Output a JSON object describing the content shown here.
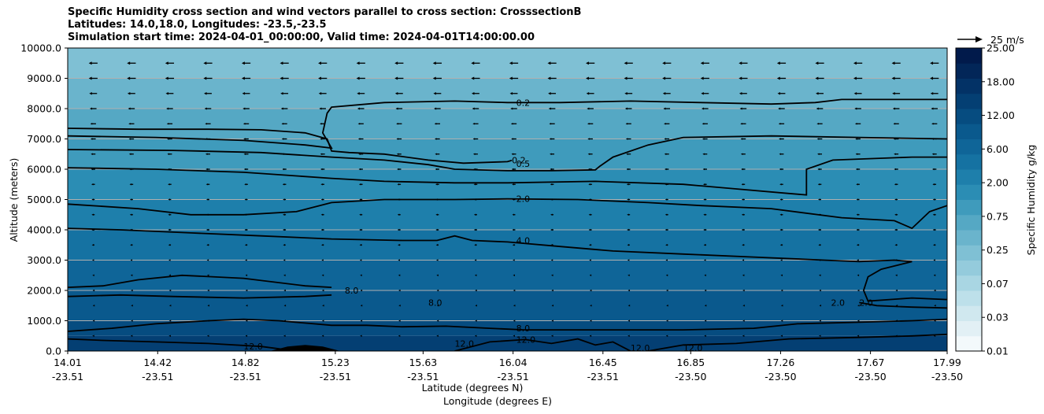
{
  "title_lines": [
    "Specific Humidity cross section and wind vectors parallel to cross section: CrosssectionB",
    "Latitudes: 14.0,18.0, Longitudes: -23.5,-23.5",
    "Simulation start time: 2024-04-01_00:00:00, Valid time: 2024-04-01T14:00:00.00"
  ],
  "quiver_key_label": "25 m/s",
  "colors": {
    "levels": [
      "#f3f9fb",
      "#e2f0f5",
      "#d0e8ef",
      "#bde0ea",
      "#a9d6e3",
      "#94cbdc",
      "#7fc0d4",
      "#6ab4cc",
      "#55a8c4",
      "#3f9bbc",
      "#2b8db4",
      "#1e7fab",
      "#1572a2",
      "#0f6598",
      "#0a598d",
      "#064c80",
      "#043f73",
      "#033266",
      "#022658",
      "#011a4b"
    ],
    "contour": "#000000",
    "terrain": "#000000",
    "grid": "#b0b0b0"
  },
  "chart_data": {
    "type": "heatmap",
    "title": "Specific Humidity cross section and wind vectors parallel to cross section: CrosssectionB",
    "xlabel_lat": "Latitude (degrees N)",
    "xlabel_lon": "Longitude (degrees E)",
    "ylabel": "Altitude (meters)",
    "ylim": [
      0,
      10000
    ],
    "xlim": [
      0,
      1
    ],
    "yticks": [
      "0.0",
      "1000.0",
      "2000.0",
      "3000.0",
      "4000.0",
      "5000.0",
      "6000.0",
      "7000.0",
      "8000.0",
      "9000.0",
      "10000.0"
    ],
    "xticks": [
      {
        "lat": "14.01",
        "lon": "-23.51",
        "f": 0.0
      },
      {
        "lat": "14.42",
        "lon": "-23.51",
        "f": 0.1023
      },
      {
        "lat": "14.82",
        "lon": "-23.51",
        "f": 0.2021
      },
      {
        "lat": "15.23",
        "lon": "-23.51",
        "f": 0.3043
      },
      {
        "lat": "15.63",
        "lon": "-23.51",
        "f": 0.4041
      },
      {
        "lat": "16.04",
        "lon": "-23.51",
        "f": 0.5064
      },
      {
        "lat": "16.45",
        "lon": "-23.51",
        "f": 0.6086
      },
      {
        "lat": "16.85",
        "lon": "-23.50",
        "f": 0.7084
      },
      {
        "lat": "17.26",
        "lon": "-23.50",
        "f": 0.8106
      },
      {
        "lat": "17.67",
        "lon": "-23.50",
        "f": 0.9128
      },
      {
        "lat": "17.99",
        "lon": "-23.50",
        "f": 1.0
      }
    ],
    "colorbar": {
      "label": "Specific Humidity g/kg",
      "ticks": [
        "0.01",
        "0.03",
        "0.07",
        "0.25",
        "0.75",
        "2.00",
        "6.00",
        "12.00",
        "18.00",
        "25.00"
      ]
    },
    "grid": "horizontal",
    "contours": [
      {
        "label": "0.2",
        "label_pos": [
          0.51,
          8200
        ],
        "points": [
          [
            0.0,
            7350
          ],
          [
            0.08,
            7320
          ],
          [
            0.16,
            7320
          ],
          [
            0.22,
            7300
          ],
          [
            0.27,
            7200
          ],
          [
            0.295,
            7000
          ],
          [
            0.3,
            6600
          ],
          [
            0.32,
            6550
          ],
          [
            0.36,
            6500
          ],
          [
            0.41,
            6300
          ],
          [
            0.45,
            6200
          ],
          [
            0.5,
            6250
          ],
          [
            0.505,
            6290
          ]
        ]
      },
      {
        "label": "0.2",
        "label_pos": [
          0.51,
          8200
        ],
        "points": [
          [
            0.0,
            7100
          ],
          [
            0.1,
            7050
          ],
          [
            0.2,
            6950
          ],
          [
            0.27,
            6800
          ],
          [
            0.3,
            6700
          ],
          [
            0.29,
            7200
          ],
          [
            0.295,
            7850
          ],
          [
            0.3,
            8050
          ],
          [
            0.36,
            8200
          ],
          [
            0.44,
            8250
          ],
          [
            0.5,
            8200
          ],
          [
            0.56,
            8200
          ],
          [
            0.64,
            8250
          ],
          [
            0.72,
            8200
          ],
          [
            0.8,
            8150
          ],
          [
            0.85,
            8200
          ],
          [
            0.88,
            8300
          ],
          [
            0.96,
            8300
          ],
          [
            1.0,
            8300
          ]
        ]
      },
      {
        "label": "0.5",
        "label_pos": [
          0.51,
          6200
        ],
        "points": [
          [
            0.0,
            6650
          ],
          [
            0.12,
            6620
          ],
          [
            0.22,
            6550
          ],
          [
            0.3,
            6400
          ],
          [
            0.36,
            6300
          ],
          [
            0.41,
            6150
          ],
          [
            0.44,
            6000
          ],
          [
            0.5,
            5950
          ],
          [
            0.55,
            5950
          ],
          [
            0.6,
            5980
          ],
          [
            0.605,
            6100
          ],
          [
            0.62,
            6400
          ],
          [
            0.66,
            6800
          ],
          [
            0.7,
            7050
          ],
          [
            0.8,
            7100
          ],
          [
            0.9,
            7050
          ],
          [
            1.0,
            7000
          ]
        ]
      },
      {
        "label": "2.0",
        "label_pos": [
          0.51,
          5030
        ],
        "points": [
          [
            0.0,
            6050
          ],
          [
            0.1,
            6000
          ],
          [
            0.2,
            5900
          ],
          [
            0.3,
            5700
          ],
          [
            0.36,
            5600
          ],
          [
            0.44,
            5550
          ],
          [
            0.5,
            5550
          ],
          [
            0.6,
            5600
          ],
          [
            0.7,
            5500
          ],
          [
            0.76,
            5350
          ],
          [
            0.82,
            5200
          ],
          [
            0.84,
            5150
          ],
          [
            0.84,
            5400
          ],
          [
            0.84,
            6000
          ],
          [
            0.87,
            6300
          ],
          [
            0.96,
            6400
          ],
          [
            1.0,
            6400
          ]
        ]
      },
      {
        "label": "2.0",
        "label_pos": [
          0.51,
          5030
        ],
        "points": [
          [
            0.0,
            4850
          ],
          [
            0.08,
            4700
          ],
          [
            0.14,
            4500
          ],
          [
            0.2,
            4500
          ],
          [
            0.26,
            4600
          ],
          [
            0.3,
            4900
          ],
          [
            0.36,
            5000
          ],
          [
            0.44,
            5000
          ],
          [
            0.5,
            5020
          ],
          [
            0.58,
            5000
          ],
          [
            0.66,
            4900
          ],
          [
            0.72,
            4800
          ],
          [
            0.8,
            4700
          ],
          [
            0.88,
            4400
          ],
          [
            0.94,
            4300
          ],
          [
            0.96,
            4050
          ],
          [
            0.98,
            4600
          ],
          [
            1.0,
            4800
          ]
        ]
      },
      {
        "label": "4.0",
        "label_pos": [
          0.51,
          3700
        ],
        "points": [
          [
            0.0,
            4050
          ],
          [
            0.06,
            4000
          ],
          [
            0.14,
            3900
          ],
          [
            0.22,
            3800
          ],
          [
            0.3,
            3700
          ],
          [
            0.38,
            3650
          ],
          [
            0.42,
            3650
          ],
          [
            0.44,
            3800
          ],
          [
            0.46,
            3650
          ],
          [
            0.5,
            3600
          ],
          [
            0.56,
            3450
          ],
          [
            0.62,
            3300
          ],
          [
            0.7,
            3200
          ],
          [
            0.78,
            3100
          ],
          [
            0.86,
            3000
          ],
          [
            0.9,
            2950
          ],
          [
            0.94,
            3000
          ],
          [
            0.96,
            2950
          ],
          [
            0.925,
            2700
          ],
          [
            0.91,
            2450
          ],
          [
            0.905,
            2000
          ],
          [
            0.91,
            1650
          ],
          [
            0.96,
            1750
          ],
          [
            1.0,
            1700
          ]
        ]
      },
      {
        "label": "8.0",
        "label_pos": [
          0.31,
          1950
        ],
        "points": [
          [
            0.0,
            2100
          ],
          [
            0.04,
            2150
          ],
          [
            0.08,
            2350
          ],
          [
            0.13,
            2500
          ],
          [
            0.2,
            2400
          ],
          [
            0.27,
            2150
          ],
          [
            0.3,
            2100
          ]
        ]
      },
      {
        "label": "8.0",
        "label_pos": [
          0.41,
          1600
        ],
        "points": [
          [
            0.0,
            1800
          ],
          [
            0.06,
            1850
          ],
          [
            0.12,
            1800
          ],
          [
            0.2,
            1750
          ],
          [
            0.27,
            1800
          ],
          [
            0.3,
            1850
          ]
        ]
      },
      {
        "label": "2.0",
        "label_pos": [
          0.88,
          1600
        ],
        "points": [
          [
            0.9,
            1600
          ],
          [
            0.92,
            1500
          ],
          [
            0.96,
            1450
          ],
          [
            1.0,
            1420
          ]
        ]
      },
      {
        "label": "8.0",
        "label_pos": [
          0.51,
          750
        ],
        "points": [
          [
            0.0,
            650
          ],
          [
            0.05,
            750
          ],
          [
            0.1,
            900
          ],
          [
            0.16,
            1000
          ],
          [
            0.2,
            1050
          ],
          [
            0.24,
            1000
          ],
          [
            0.28,
            900
          ],
          [
            0.3,
            850
          ],
          [
            0.34,
            850
          ],
          [
            0.38,
            800
          ],
          [
            0.43,
            820
          ],
          [
            0.48,
            750
          ],
          [
            0.52,
            700
          ],
          [
            0.6,
            700
          ],
          [
            0.7,
            700
          ],
          [
            0.78,
            750
          ],
          [
            0.83,
            900
          ],
          [
            0.9,
            950
          ],
          [
            0.96,
            1000
          ],
          [
            1.0,
            1050
          ]
        ]
      },
      {
        "label": "12.0",
        "label_pos": [
          0.51,
          400
        ],
        "points": [
          [
            0.0,
            400
          ],
          [
            0.04,
            350
          ],
          [
            0.1,
            300
          ],
          [
            0.16,
            250
          ],
          [
            0.22,
            150
          ],
          [
            0.26,
            0
          ]
        ]
      },
      {
        "label": "12.0",
        "label_pos": [
          0.51,
          400
        ],
        "points": [
          [
            0.44,
            0
          ],
          [
            0.48,
            300
          ],
          [
            0.52,
            380
          ],
          [
            0.55,
            250
          ],
          [
            0.58,
            400
          ],
          [
            0.6,
            200
          ],
          [
            0.62,
            300
          ],
          [
            0.64,
            0
          ]
        ]
      },
      {
        "label": "12.0",
        "label_pos": [
          0.69,
          100
        ],
        "points": [
          [
            0.66,
            0
          ],
          [
            0.7,
            200
          ],
          [
            0.76,
            250
          ],
          [
            0.82,
            400
          ],
          [
            0.9,
            450
          ],
          [
            0.96,
            500
          ],
          [
            1.0,
            550
          ]
        ]
      }
    ],
    "labels_on_plot": [
      {
        "text": "0.2",
        "x": 0.51,
        "y": 8200
      },
      {
        "text": "0.2",
        "x": 0.505,
        "y": 6300
      },
      {
        "text": "0.5",
        "x": 0.51,
        "y": 6180
      },
      {
        "text": "2.0",
        "x": 0.51,
        "y": 5030
      },
      {
        "text": "4.0",
        "x": 0.51,
        "y": 3650
      },
      {
        "text": "8.0",
        "x": 0.315,
        "y": 2000
      },
      {
        "text": "8.0",
        "x": 0.41,
        "y": 1600
      },
      {
        "text": "2.0",
        "x": 0.868,
        "y": 1600
      },
      {
        "text": "2.0",
        "x": 0.9,
        "y": 1600
      },
      {
        "text": "8.0",
        "x": 0.51,
        "y": 750
      },
      {
        "text": "12.0",
        "x": 0.51,
        "y": 380
      },
      {
        "text": "12.0",
        "x": 0.2,
        "y": 150
      },
      {
        "text": "12.0",
        "x": 0.44,
        "y": 250
      },
      {
        "text": "12.0",
        "x": 0.64,
        "y": 100
      },
      {
        "text": "12.0",
        "x": 0.7,
        "y": 100
      }
    ],
    "wind": {
      "reference_speed": 25,
      "levels_m": [
        9500,
        9000,
        8500,
        8000,
        7500,
        7000,
        6500,
        6000,
        5500,
        5000,
        4500,
        4000,
        3500,
        3000,
        2500,
        2000,
        1500,
        1000,
        500
      ],
      "speeds": [
        8.5,
        8.5,
        7.5,
        6.5,
        5.5,
        5,
        4.5,
        4,
        3.5,
        3,
        3,
        3,
        2.5,
        2,
        1.5,
        1,
        0.8,
        1,
        1.5
      ],
      "direction": "westward",
      "columns": 23
    },
    "terrain": {
      "x": [
        0.23,
        0.25,
        0.27,
        0.29,
        0.31
      ],
      "y": [
        0,
        150,
        200,
        150,
        0
      ]
    }
  }
}
